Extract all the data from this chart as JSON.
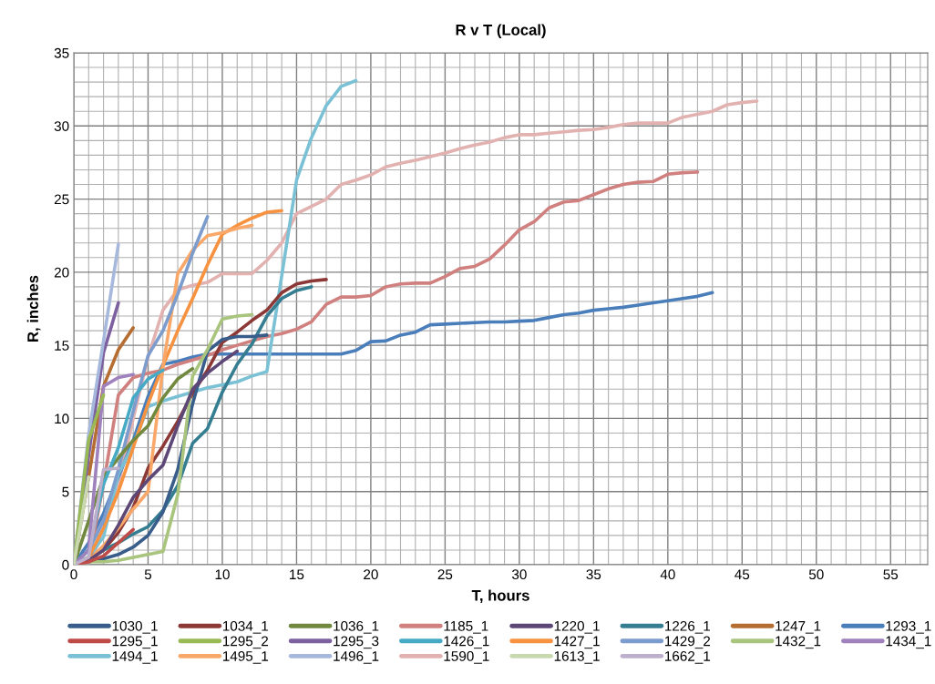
{
  "chart_data": {
    "type": "line",
    "title": "R v T (Local)",
    "xlabel": "T, hours",
    "ylabel": "R, inches",
    "xlim": [
      0,
      57.5
    ],
    "ylim": [
      0,
      35
    ],
    "xticks": [
      0,
      {
        "value": 1,
        "label": null
      },
      {
        "value": 2,
        "label": null
      },
      {
        "value": 3,
        "label": null
      },
      {
        "value": 4,
        "label": null
      },
      5,
      {
        "value": 6,
        "label": null
      },
      {
        "value": 7,
        "label": null
      },
      {
        "value": 8,
        "label": null
      },
      {
        "value": 9,
        "label": null
      },
      10,
      {
        "value": 11,
        "label": null
      },
      {
        "value": 12,
        "label": null
      },
      {
        "value": 13,
        "label": null
      },
      {
        "value": 14,
        "label": null
      },
      15,
      {
        "value": 16,
        "label": null
      },
      {
        "value": 17,
        "label": null
      },
      {
        "value": 18,
        "label": null
      },
      {
        "value": 19,
        "label": null
      },
      20,
      {
        "value": 21,
        "label": null
      },
      {
        "value": 22,
        "label": null
      },
      {
        "value": 23,
        "label": null
      },
      {
        "value": 24,
        "label": null
      },
      25,
      {
        "value": 26,
        "label": null
      },
      {
        "value": 27,
        "label": null
      },
      {
        "value": 28,
        "label": null
      },
      {
        "value": 29,
        "label": null
      },
      30,
      {
        "value": 31,
        "label": null
      },
      {
        "value": 32,
        "label": null
      },
      {
        "value": 33,
        "label": null
      },
      {
        "value": 34,
        "label": null
      },
      35,
      {
        "value": 36,
        "label": null
      },
      {
        "value": 37,
        "label": null
      },
      {
        "value": 38,
        "label": null
      },
      {
        "value": 39,
        "label": null
      },
      40,
      {
        "value": 41,
        "label": null
      },
      {
        "value": 42,
        "label": null
      },
      {
        "value": 43,
        "label": null
      },
      {
        "value": 44,
        "label": null
      },
      45,
      {
        "value": 46,
        "label": null
      },
      {
        "value": 47,
        "label": null
      },
      {
        "value": 48,
        "label": null
      },
      {
        "value": 49,
        "label": null
      },
      50,
      {
        "value": 51,
        "label": null
      },
      {
        "value": 52,
        "label": null
      },
      {
        "value": 53,
        "label": null
      },
      {
        "value": 54,
        "label": null
      },
      55,
      {
        "value": 56,
        "label": null
      },
      {
        "value": 57,
        "label": null
      }
    ],
    "yticks": [
      0,
      {
        "value": 1,
        "label": null
      },
      {
        "value": 2,
        "label": null
      },
      {
        "value": 3,
        "label": null
      },
      {
        "value": 4,
        "label": null
      },
      5,
      {
        "value": 6,
        "label": null
      },
      {
        "value": 7,
        "label": null
      },
      {
        "value": 8,
        "label": null
      },
      {
        "value": 9,
        "label": null
      },
      10,
      {
        "value": 11,
        "label": null
      },
      {
        "value": 12,
        "label": null
      },
      {
        "value": 13,
        "label": null
      },
      {
        "value": 14,
        "label": null
      },
      15,
      {
        "value": 16,
        "label": null
      },
      {
        "value": 17,
        "label": null
      },
      {
        "value": 18,
        "label": null
      },
      {
        "value": 19,
        "label": null
      },
      20,
      {
        "value": 21,
        "label": null
      },
      {
        "value": 22,
        "label": null
      },
      {
        "value": 23,
        "label": null
      },
      {
        "value": 24,
        "label": null
      },
      25,
      {
        "value": 26,
        "label": null
      },
      {
        "value": 27,
        "label": null
      },
      {
        "value": 28,
        "label": null
      },
      {
        "value": 29,
        "label": null
      },
      30,
      {
        "value": 31,
        "label": null
      },
      {
        "value": 32,
        "label": null
      },
      {
        "value": 33,
        "label": null
      },
      {
        "value": 34,
        "label": null
      },
      35
    ],
    "grid": true,
    "legend": "bottom",
    "marker": "none",
    "line_style": "solid",
    "series": [
      {
        "name": "1030_1",
        "color": "#385d8a",
        "x": [
          0,
          1,
          2,
          3,
          4,
          5,
          6,
          7,
          8,
          9,
          10,
          11,
          12,
          13
        ],
        "values": [
          0,
          0.2,
          0.4,
          0.7,
          1.2,
          2,
          3.6,
          6.5,
          11,
          14.6,
          15.4,
          15.6,
          15.6,
          15.7
        ]
      },
      {
        "name": "1034_1",
        "color": "#8c3836",
        "x": [
          0,
          1,
          2,
          3,
          4,
          5,
          6,
          7,
          8,
          9,
          10,
          11,
          12,
          13,
          14,
          15,
          16,
          17
        ],
        "values": [
          0,
          0.3,
          1,
          2.2,
          3.9,
          6.6,
          8.1,
          9.8,
          11.7,
          13.3,
          15.2,
          15.9,
          16.7,
          17.4,
          18.6,
          19.2,
          19.4,
          19.5
        ]
      },
      {
        "name": "1036_1",
        "color": "#71893f",
        "x": [
          0,
          1,
          2,
          3,
          4,
          5,
          6,
          7,
          8
        ],
        "values": [
          0,
          3,
          6,
          7.3,
          8.5,
          9.5,
          11.4,
          12.7,
          13.4
        ]
      },
      {
        "name": "1185_1",
        "color": "#d0807e",
        "x": [
          0,
          1,
          2,
          3,
          4,
          5,
          6,
          7,
          8,
          9,
          10,
          11,
          12,
          13,
          14,
          15,
          16,
          17,
          18,
          19,
          20,
          21,
          22,
          23,
          24,
          25,
          26,
          27,
          28,
          29,
          30,
          31,
          32,
          33,
          34,
          35,
          36,
          37,
          38,
          39,
          40,
          41,
          42
        ],
        "values": [
          0,
          0.3,
          5.5,
          11.6,
          12.8,
          13.1,
          13.3,
          13.7,
          14,
          14.3,
          14.7,
          15,
          15.3,
          15.6,
          15.8,
          16.1,
          16.6,
          17.8,
          18.3,
          18.3,
          18.4,
          19,
          19.2,
          19.25,
          19.25,
          19.7,
          20.25,
          20.4,
          20.9,
          21.85,
          22.9,
          23.45,
          24.4,
          24.8,
          24.9,
          25.3,
          25.7,
          26,
          26.15,
          26.2,
          26.7,
          26.8,
          26.85
        ]
      },
      {
        "name": "1220_1",
        "color": "#5c4776",
        "x": [
          0,
          1,
          2,
          3,
          4,
          5,
          6,
          7,
          8,
          9,
          10,
          11
        ],
        "values": [
          0,
          0.3,
          1,
          2.7,
          4.6,
          5.8,
          6.8,
          9.5,
          12,
          13.1,
          13.9,
          14.6
        ]
      },
      {
        "name": "1226_1",
        "color": "#357d91",
        "x": [
          0,
          1,
          2,
          3,
          4,
          5,
          6,
          7,
          8,
          9,
          10,
          11,
          12,
          13,
          14,
          15,
          16
        ],
        "values": [
          0,
          0.5,
          1,
          1.5,
          2.1,
          2.6,
          3.7,
          5.4,
          8.3,
          9.3,
          11.8,
          13.7,
          15.1,
          17,
          18.2,
          18.75,
          19
        ]
      },
      {
        "name": "1247_1",
        "color": "#b66d31",
        "x": [
          0,
          1,
          2,
          3,
          4
        ],
        "values": [
          0,
          6,
          12.2,
          14.7,
          16.2
        ]
      },
      {
        "name": "1293_1",
        "color": "#4a7ebb",
        "x": [
          0,
          1,
          2,
          3,
          4,
          5,
          6,
          7,
          8,
          9,
          10,
          11,
          12,
          13,
          14,
          15,
          16,
          17,
          18,
          19,
          20,
          21,
          22,
          23,
          24,
          25,
          26,
          27,
          28,
          29,
          30,
          31,
          32,
          33,
          34,
          35,
          36,
          37,
          38,
          39,
          40,
          41,
          42,
          43
        ],
        "values": [
          0,
          1.5,
          3.5,
          6,
          8.5,
          11.5,
          13.7,
          13.9,
          14.2,
          14.4,
          14.4,
          14.4,
          14.4,
          14.4,
          14.4,
          14.4,
          14.4,
          14.4,
          14.4,
          14.65,
          15.25,
          15.3,
          15.7,
          15.9,
          16.4,
          16.45,
          16.5,
          16.55,
          16.6,
          16.6,
          16.65,
          16.7,
          16.9,
          17.1,
          17.2,
          17.4,
          17.5,
          17.6,
          17.75,
          17.9,
          18.05,
          18.2,
          18.35,
          18.6
        ]
      },
      {
        "name": "1295_1",
        "color": "#be4b48",
        "x": [
          0,
          1,
          2,
          3,
          4
        ],
        "values": [
          0,
          0.2,
          0.6,
          1.5,
          2.4
        ]
      },
      {
        "name": "1295_2",
        "color": "#98b954",
        "x": [
          0,
          1,
          2
        ],
        "values": [
          0,
          8.5,
          11.6
        ]
      },
      {
        "name": "1295_3",
        "color": "#7d60a0",
        "x": [
          0,
          1,
          2,
          3
        ],
        "values": [
          0,
          7.5,
          14.5,
          17.9
        ]
      },
      {
        "name": "1426_1",
        "color": "#46aac5",
        "x": [
          0,
          1,
          2,
          3,
          4,
          5,
          6
        ],
        "values": [
          0,
          1,
          5.5,
          8,
          11.4,
          12.7,
          13.3
        ]
      },
      {
        "name": "1427_1",
        "color": "#f69240",
        "x": [
          0,
          1,
          2,
          3,
          4,
          5,
          6,
          7,
          8,
          9,
          10,
          11,
          12,
          13,
          14
        ],
        "values": [
          0,
          0.5,
          2.5,
          5,
          8,
          11,
          13.6,
          16,
          18.2,
          20.5,
          22.6,
          23.2,
          23.7,
          24.1,
          24.2
        ]
      },
      {
        "name": "1429_2",
        "color": "#7c9ccd",
        "x": [
          0,
          1,
          2,
          3,
          4,
          5,
          6,
          7,
          8,
          9
        ],
        "values": [
          0,
          1,
          3,
          6.5,
          10.5,
          14.3,
          16,
          18.5,
          21.3,
          23.8
        ]
      },
      {
        "name": "1432_1",
        "color": "#a9c47c",
        "x": [
          0,
          1,
          2,
          3,
          4,
          5,
          6,
          7,
          8,
          9,
          10,
          11,
          12
        ],
        "values": [
          0,
          0.2,
          0.2,
          0.3,
          0.5,
          0.7,
          0.9,
          4.8,
          12.9,
          14.7,
          16.8,
          17,
          17.1
        ]
      },
      {
        "name": "1434_1",
        "color": "#9f82bd",
        "x": [
          0,
          1,
          2,
          3,
          4
        ],
        "values": [
          0,
          1,
          12.2,
          12.8,
          13
        ]
      },
      {
        "name": "1494_1",
        "color": "#7bc1d6",
        "x": [
          0,
          1,
          2,
          3,
          4,
          5,
          6,
          7,
          8,
          9,
          10,
          11,
          12,
          13,
          15,
          16,
          17,
          18,
          19
        ],
        "values": [
          0,
          0.5,
          1.9,
          6.2,
          8.2,
          10.8,
          11.2,
          11.5,
          11.8,
          12.1,
          12.3,
          12.5,
          12.9,
          13.2,
          26.3,
          29.2,
          31.4,
          32.7,
          33.1
        ]
      },
      {
        "name": "1495_1",
        "color": "#f9a86a",
        "x": [
          0,
          1,
          2,
          3,
          4,
          5,
          6,
          7,
          8,
          9,
          10,
          11,
          12
        ],
        "values": [
          0,
          0.3,
          1.3,
          2.5,
          3.8,
          5,
          13.5,
          19.9,
          21.5,
          22.5,
          22.7,
          23,
          23.2
        ]
      },
      {
        "name": "1496_1",
        "color": "#a6b9dc",
        "x": [
          0,
          1,
          2,
          3
        ],
        "values": [
          0,
          8.9,
          15.3,
          21.9
        ]
      },
      {
        "name": "1590_1",
        "color": "#e2b2b1",
        "x": [
          0,
          1,
          2,
          3,
          4,
          5,
          6,
          7,
          8,
          9,
          10,
          11,
          12,
          13,
          14,
          15,
          16,
          17,
          18,
          19,
          20,
          21,
          22,
          23,
          24,
          25,
          26,
          27,
          28,
          29,
          30,
          31,
          32,
          33,
          34,
          35,
          36,
          37,
          38,
          39,
          40,
          41,
          42,
          43,
          44,
          45,
          46
        ],
        "values": [
          0,
          0,
          2.3,
          5.5,
          10,
          14.2,
          17.4,
          18.8,
          19.1,
          19.3,
          19.9,
          19.9,
          19.9,
          20.8,
          22,
          24,
          24.5,
          25,
          26,
          26.3,
          26.65,
          27.2,
          27.45,
          27.65,
          27.9,
          28.15,
          28.45,
          28.7,
          28.9,
          29.2,
          29.4,
          29.4,
          29.5,
          29.6,
          29.7,
          29.75,
          29.9,
          30.1,
          30.2,
          30.2,
          30.2,
          30.6,
          30.8,
          31,
          31.45,
          31.6,
          31.7
        ]
      },
      {
        "name": "1613_1",
        "color": "#c8d9b0",
        "x": [
          0,
          1
        ],
        "values": [
          0,
          6
        ]
      },
      {
        "name": "1662_1",
        "color": "#bdb0cd",
        "x": [
          0,
          1,
          2,
          3
        ],
        "values": [
          0,
          0.5,
          6.5,
          6.6
        ]
      }
    ]
  }
}
